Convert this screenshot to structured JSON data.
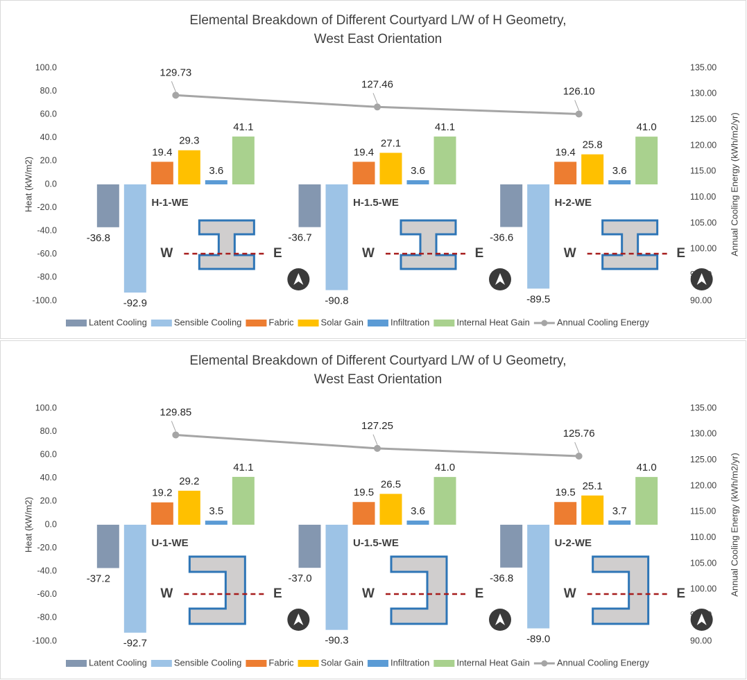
{
  "chart_data": [
    {
      "type": "bar",
      "title": [
        "Elemental Breakdown of Different Courtyard L/W of H Geometry,",
        "West East Orientation"
      ],
      "categories": [
        "H-1-WE",
        "H-1.5-WE",
        "H-2-WE"
      ],
      "building_shape": "H",
      "compass": {
        "west": "W",
        "east": "E"
      },
      "ylabel": "Heat (kW/m2)",
      "y2label": "Annual Cooling Energy (kWh/m2/yr)",
      "ylim": [
        -100,
        100
      ],
      "yticks": [
        {
          "value": -100,
          "label": "-100.0"
        },
        {
          "value": -80,
          "label": "-80.0"
        },
        {
          "value": -60,
          "label": "-60.0"
        },
        {
          "value": -40,
          "label": "-40.0"
        },
        {
          "value": -20,
          "label": "-20.0"
        },
        {
          "value": 0,
          "label": "0.0"
        },
        {
          "value": 20,
          "label": "20.0"
        },
        {
          "value": 40,
          "label": "40.0"
        },
        {
          "value": 60,
          "label": "60.0"
        },
        {
          "value": 80,
          "label": "80.0"
        },
        {
          "value": 100,
          "label": "100.0"
        }
      ],
      "y2lim": [
        90,
        135
      ],
      "y2ticks": [
        {
          "value": 90,
          "label": "90.00"
        },
        {
          "value": 95,
          "label": "95.00"
        },
        {
          "value": 100,
          "label": "100.00"
        },
        {
          "value": 105,
          "label": "105.00"
        },
        {
          "value": 110,
          "label": "110.00"
        },
        {
          "value": 115,
          "label": "115.00"
        },
        {
          "value": 120,
          "label": "120.00"
        },
        {
          "value": 125,
          "label": "125.00"
        },
        {
          "value": 130,
          "label": "130.00"
        },
        {
          "value": 135,
          "label": "135.00"
        }
      ],
      "grid": false,
      "series": [
        {
          "name": "Latent Cooling",
          "color": "#8497b0",
          "values": [
            -36.8,
            -36.7,
            -36.6
          ],
          "value_labels": [
            "-36.8",
            "-36.7",
            "-36.6"
          ]
        },
        {
          "name": "Sensible Cooling",
          "color": "#9dc3e6",
          "values": [
            -92.9,
            -90.8,
            -89.5
          ],
          "value_labels": [
            "-92.9",
            "-90.8",
            "-89.5"
          ]
        },
        {
          "name": "Fabric",
          "color": "#ed7d31",
          "values": [
            19.4,
            19.4,
            19.4
          ],
          "value_labels": [
            "19.4",
            "19.4",
            "19.4"
          ]
        },
        {
          "name": "Solar Gain",
          "color": "#ffc000",
          "values": [
            29.3,
            27.1,
            25.8
          ],
          "value_labels": [
            "29.3",
            "27.1",
            "25.8"
          ]
        },
        {
          "name": "Infiltration",
          "color": "#5b9bd5",
          "values": [
            3.6,
            3.6,
            3.6
          ],
          "value_labels": [
            "3.6",
            "3.6",
            "3.6"
          ]
        },
        {
          "name": "Internal Heat Gain",
          "color": "#a9d18e",
          "values": [
            41.1,
            41.1,
            41.0
          ],
          "value_labels": [
            "41.1",
            "41.1",
            "41.0"
          ]
        },
        {
          "name": "Annual Cooling Energy",
          "color": "#a5a5a5",
          "type": "line",
          "axis": "y2",
          "values": [
            129.73,
            127.46,
            126.1
          ],
          "value_labels": [
            "129.73",
            "127.46",
            "126.10"
          ]
        }
      ]
    },
    {
      "type": "bar",
      "title": [
        "Elemental Breakdown of Different Courtyard L/W of U Geometry,",
        "West East Orientation"
      ],
      "categories": [
        "U-1-WE",
        "U-1.5-WE",
        "U-2-WE"
      ],
      "building_shape": "U",
      "compass": {
        "west": "W",
        "east": "E"
      },
      "ylabel": "Heat (kW/m2)",
      "y2label": "Annual Cooling Energy (kWh/m2/yr)",
      "ylim": [
        -100,
        100
      ],
      "yticks": [
        {
          "value": -100,
          "label": "-100.0"
        },
        {
          "value": -80,
          "label": "-80.0"
        },
        {
          "value": -60,
          "label": "-60.0"
        },
        {
          "value": -40,
          "label": "-40.0"
        },
        {
          "value": -20,
          "label": "-20.0"
        },
        {
          "value": 0,
          "label": "0.0"
        },
        {
          "value": 20,
          "label": "20.0"
        },
        {
          "value": 40,
          "label": "40.0"
        },
        {
          "value": 60,
          "label": "60.0"
        },
        {
          "value": 80,
          "label": "80.0"
        },
        {
          "value": 100,
          "label": "100.0"
        }
      ],
      "y2lim": [
        90,
        135
      ],
      "y2ticks": [
        {
          "value": 90,
          "label": "90.00"
        },
        {
          "value": 95,
          "label": "95.00"
        },
        {
          "value": 100,
          "label": "100.00"
        },
        {
          "value": 105,
          "label": "105.00"
        },
        {
          "value": 110,
          "label": "110.00"
        },
        {
          "value": 115,
          "label": "115.00"
        },
        {
          "value": 120,
          "label": "120.00"
        },
        {
          "value": 125,
          "label": "125.00"
        },
        {
          "value": 130,
          "label": "130.00"
        },
        {
          "value": 135,
          "label": "135.00"
        }
      ],
      "grid": false,
      "series": [
        {
          "name": "Latent Cooling",
          "color": "#8497b0",
          "values": [
            -37.2,
            -37.0,
            -36.8
          ],
          "value_labels": [
            "-37.2",
            "-37.0",
            "-36.8"
          ]
        },
        {
          "name": "Sensible Cooling",
          "color": "#9dc3e6",
          "values": [
            -92.7,
            -90.3,
            -89.0
          ],
          "value_labels": [
            "-92.7",
            "-90.3",
            "-89.0"
          ]
        },
        {
          "name": "Fabric",
          "color": "#ed7d31",
          "values": [
            19.2,
            19.5,
            19.5
          ],
          "value_labels": [
            "19.2",
            "19.5",
            "19.5"
          ]
        },
        {
          "name": "Solar Gain",
          "color": "#ffc000",
          "values": [
            29.2,
            26.5,
            25.1
          ],
          "value_labels": [
            "29.2",
            "26.5",
            "25.1"
          ]
        },
        {
          "name": "Infiltration",
          "color": "#5b9bd5",
          "values": [
            3.5,
            3.6,
            3.7
          ],
          "value_labels": [
            "3.5",
            "3.6",
            "3.7"
          ]
        },
        {
          "name": "Internal Heat Gain",
          "color": "#a9d18e",
          "values": [
            41.1,
            41.0,
            41.0
          ],
          "value_labels": [
            "41.1",
            "41.0",
            "41.0"
          ]
        },
        {
          "name": "Annual Cooling Energy",
          "color": "#a5a5a5",
          "type": "line",
          "axis": "y2",
          "values": [
            129.85,
            127.25,
            125.76
          ],
          "value_labels": [
            "129.85",
            "127.25",
            "125.76"
          ]
        }
      ]
    }
  ]
}
